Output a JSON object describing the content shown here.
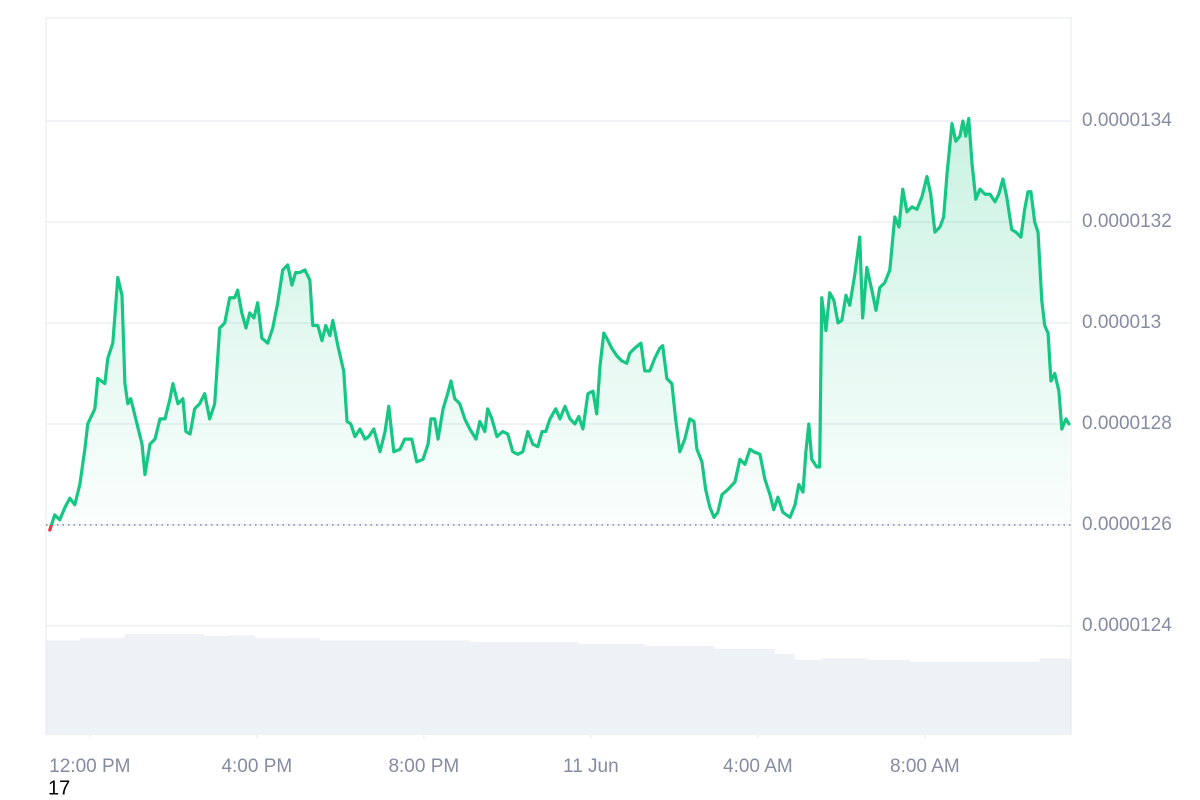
{
  "chart_data": {
    "type": "line",
    "baseline": 1.26e-05,
    "xlim": [
      -1.05,
      23.5
    ],
    "xticks": [
      {
        "value": 0,
        "label": "12:00 PM"
      },
      {
        "value": 4,
        "label": "4:00 PM"
      },
      {
        "value": 8,
        "label": "8:00 PM"
      },
      {
        "value": 12,
        "label": "11 Jun"
      },
      {
        "value": 16,
        "label": "4:00 AM"
      },
      {
        "value": 20,
        "label": "8:00 AM"
      }
    ],
    "ylim": [
      1.2184e-05,
      1.3604e-05
    ],
    "yticks": [
      1.24e-05,
      1.26e-05,
      1.28e-05,
      1.3e-05,
      1.32e-05,
      1.34e-05
    ],
    "grid": true,
    "y2lim": [
      0,
      100
    ],
    "series": [
      {
        "color": "#16c784",
        "below_color": "#ea3943",
        "x": [
          -0.96,
          -0.84,
          -0.72,
          -0.6,
          -0.48,
          -0.36,
          -0.24,
          -0.12,
          -0.05,
          0.12,
          0.19,
          0.36,
          0.43,
          0.55,
          0.67,
          0.77,
          0.84,
          0.91,
          0.98,
          1.13,
          1.25,
          1.32,
          1.44,
          1.56,
          1.68,
          1.8,
          1.92,
          1.99,
          2.11,
          2.23,
          2.3,
          2.4,
          2.51,
          2.63,
          2.75,
          2.87,
          2.99,
          3.11,
          3.23,
          3.35,
          3.47,
          3.54,
          3.64,
          3.74,
          3.83,
          3.93,
          4.02,
          4.12,
          4.26,
          4.38,
          4.5,
          4.62,
          4.74,
          4.84,
          4.93,
          5.03,
          5.15,
          5.27,
          5.34,
          5.46,
          5.56,
          5.65,
          5.75,
          5.82,
          5.94,
          6.08,
          6.16,
          6.25,
          6.35,
          6.47,
          6.59,
          6.68,
          6.8,
          6.95,
          7.07,
          7.16,
          7.28,
          7.43,
          7.54,
          7.71,
          7.83,
          7.98,
          8.1,
          8.17,
          8.26,
          8.34,
          8.46,
          8.57,
          8.65,
          8.74,
          8.86,
          8.98,
          9.1,
          9.25,
          9.34,
          9.46,
          9.53,
          9.63,
          9.75,
          9.89,
          10.01,
          10.13,
          10.25,
          10.37,
          10.49,
          10.61,
          10.73,
          10.83,
          10.92,
          11.02,
          11.16,
          11.26,
          11.38,
          11.5,
          11.62,
          11.71,
          11.81,
          11.93,
          12.05,
          12.14,
          12.22,
          12.31,
          12.38,
          12.5,
          12.62,
          12.74,
          12.86,
          12.93,
          13.05,
          13.2,
          13.29,
          13.41,
          13.53,
          13.65,
          13.72,
          13.82,
          13.94,
          14.03,
          14.13,
          14.25,
          14.37,
          14.47,
          14.54,
          14.66,
          14.75,
          14.85,
          14.95,
          15.04,
          15.14,
          15.28,
          15.45,
          15.57,
          15.69,
          15.81,
          15.9,
          16.05,
          16.17,
          16.29,
          16.38,
          16.48,
          16.6,
          16.77,
          16.89,
          16.98,
          17.08,
          17.15,
          17.22,
          17.29,
          17.41,
          17.48,
          17.53,
          17.63,
          17.72,
          17.82,
          17.92,
          18.01,
          18.11,
          18.2,
          18.32,
          18.44,
          18.51,
          18.61,
          18.73,
          18.83,
          18.92,
          19.04,
          19.16,
          19.28,
          19.38,
          19.47,
          19.57,
          19.69,
          19.81,
          19.93,
          20.05,
          20.14,
          20.24,
          20.36,
          20.45,
          20.53,
          20.65,
          20.74,
          20.84,
          20.91,
          20.98,
          21.05,
          21.13,
          21.22,
          21.32,
          21.44,
          21.56,
          21.68,
          21.77,
          21.87,
          21.96,
          22.08,
          22.18,
          22.3,
          22.39,
          22.47,
          22.54,
          22.63,
          22.71,
          22.8,
          22.87,
          22.95,
          23.02,
          23.11,
          23.21,
          23.28,
          23.38,
          23.45
        ],
        "values": [
          1.259e-05,
          1.262e-05,
          1.261e-05,
          1.2634e-05,
          1.2653e-05,
          1.264e-05,
          1.268e-05,
          1.275e-05,
          1.28e-05,
          1.283e-05,
          1.289e-05,
          1.288e-05,
          1.293e-05,
          1.296e-05,
          1.309e-05,
          1.3055e-05,
          1.288e-05,
          1.284e-05,
          1.285e-05,
          1.28e-05,
          1.276e-05,
          1.27e-05,
          1.276e-05,
          1.277e-05,
          1.281e-05,
          1.281e-05,
          1.285e-05,
          1.288e-05,
          1.284e-05,
          1.285e-05,
          1.2785e-05,
          1.278e-05,
          1.283e-05,
          1.284e-05,
          1.286e-05,
          1.281e-05,
          1.284e-05,
          1.299e-05,
          1.3e-05,
          1.305e-05,
          1.305e-05,
          1.3065e-05,
          1.302e-05,
          1.299e-05,
          1.302e-05,
          1.301e-05,
          1.304e-05,
          1.297e-05,
          1.296e-05,
          1.299e-05,
          1.304e-05,
          1.3105e-05,
          1.3115e-05,
          1.3075e-05,
          1.31e-05,
          1.31e-05,
          1.3105e-05,
          1.3085e-05,
          1.2995e-05,
          1.2995e-05,
          1.2965e-05,
          1.2995e-05,
          1.2975e-05,
          1.3005e-05,
          1.2955e-05,
          1.2905e-05,
          1.2805e-05,
          1.28e-05,
          1.2775e-05,
          1.279e-05,
          1.277e-05,
          1.2775e-05,
          1.279e-05,
          1.2745e-05,
          1.2785e-05,
          1.2835e-05,
          1.2745e-05,
          1.275e-05,
          1.277e-05,
          1.277e-05,
          1.2725e-05,
          1.273e-05,
          1.276e-05,
          1.281e-05,
          1.281e-05,
          1.277e-05,
          1.283e-05,
          1.286e-05,
          1.2885e-05,
          1.285e-05,
          1.284e-05,
          1.281e-05,
          1.279e-05,
          1.277e-05,
          1.2805e-05,
          1.2785e-05,
          1.283e-05,
          1.281e-05,
          1.2775e-05,
          1.2785e-05,
          1.278e-05,
          1.2745e-05,
          1.274e-05,
          1.2745e-05,
          1.2785e-05,
          1.276e-05,
          1.2755e-05,
          1.2785e-05,
          1.2785e-05,
          1.281e-05,
          1.283e-05,
          1.281e-05,
          1.2835e-05,
          1.281e-05,
          1.28e-05,
          1.2815e-05,
          1.279e-05,
          1.286e-05,
          1.2865e-05,
          1.282e-05,
          1.2915e-05,
          1.298e-05,
          1.297e-05,
          1.295e-05,
          1.2935e-05,
          1.2925e-05,
          1.292e-05,
          1.294e-05,
          1.295e-05,
          1.296e-05,
          1.2905e-05,
          1.2905e-05,
          1.293e-05,
          1.295e-05,
          1.2955e-05,
          1.289e-05,
          1.288e-05,
          1.281e-05,
          1.2745e-05,
          1.277e-05,
          1.281e-05,
          1.2805e-05,
          1.275e-05,
          1.2725e-05,
          1.267e-05,
          1.2635e-05,
          1.2615e-05,
          1.2625e-05,
          1.266e-05,
          1.267e-05,
          1.2685e-05,
          1.273e-05,
          1.272e-05,
          1.275e-05,
          1.2745e-05,
          1.274e-05,
          1.269e-05,
          1.266e-05,
          1.263e-05,
          1.2655e-05,
          1.2625e-05,
          1.2615e-05,
          1.264e-05,
          1.268e-05,
          1.2665e-05,
          1.2745e-05,
          1.28e-05,
          1.273e-05,
          1.2715e-05,
          1.2715e-05,
          1.305e-05,
          1.2985e-05,
          1.306e-05,
          1.3045e-05,
          1.3e-05,
          1.3005e-05,
          1.3055e-05,
          1.3035e-05,
          1.3095e-05,
          1.317e-05,
          1.301e-05,
          1.311e-05,
          1.3065e-05,
          1.3025e-05,
          1.307e-05,
          1.308e-05,
          1.3105e-05,
          1.321e-05,
          1.319e-05,
          1.3265e-05,
          1.322e-05,
          1.323e-05,
          1.3225e-05,
          1.325e-05,
          1.329e-05,
          1.3255e-05,
          1.318e-05,
          1.319e-05,
          1.321e-05,
          1.3295e-05,
          1.3395e-05,
          1.336e-05,
          1.337e-05,
          1.34e-05,
          1.337e-05,
          1.3405e-05,
          1.3315e-05,
          1.3245e-05,
          1.3265e-05,
          1.3255e-05,
          1.3255e-05,
          1.324e-05,
          1.3255e-05,
          1.3285e-05,
          1.325e-05,
          1.3185e-05,
          1.318e-05,
          1.317e-05,
          1.3225e-05,
          1.326e-05,
          1.326e-05,
          1.32e-05,
          1.318e-05,
          1.3045e-05,
          1.2995e-05,
          1.298e-05,
          1.2885e-05,
          1.29e-05,
          1.2865e-05,
          1.279e-05,
          1.281e-05,
          1.28e-05
        ]
      }
    ],
    "volume": {
      "color": "#eef1f5",
      "axis": "y2",
      "bins": [
        -1.05,
        -0.24,
        0.84,
        2.75,
        3.31,
        3.95,
        5.51,
        9.1,
        11.69,
        13.29,
        14.97,
        16.41,
        16.89,
        17.53,
        18.63,
        19.64,
        22.75,
        23.5
      ],
      "values": [
        13.2,
        13.5,
        14.1,
        13.8,
        13.9,
        13.5,
        13.2,
        13.0,
        12.7,
        12.4,
        12.0,
        11.3,
        10.5,
        10.7,
        10.5,
        10.2,
        10.7
      ]
    },
    "overlay_text": "17"
  }
}
